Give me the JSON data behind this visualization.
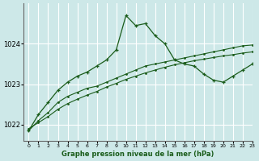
{
  "title": "Graphe pression niveau de la mer (hPa)",
  "bg_color": "#cde8e8",
  "grid_color": "#b0d0d0",
  "line_color": "#1a5c1a",
  "xlim": [
    -0.5,
    23
  ],
  "ylim": [
    1021.6,
    1025.0
  ],
  "yticks": [
    1022,
    1023,
    1024
  ],
  "xticks": [
    0,
    1,
    2,
    3,
    4,
    5,
    6,
    7,
    8,
    9,
    10,
    11,
    12,
    13,
    14,
    15,
    16,
    17,
    18,
    19,
    20,
    21,
    22,
    23
  ],
  "jagged_x": [
    0,
    1,
    2,
    3,
    4,
    5,
    6,
    7,
    8,
    9,
    10,
    11,
    12,
    13,
    14,
    15,
    16,
    17,
    18,
    19,
    20,
    21,
    22,
    23
  ],
  "jagged_y": [
    1021.85,
    1022.25,
    1022.55,
    1022.85,
    1023.05,
    1023.2,
    1023.3,
    1023.45,
    1023.6,
    1023.85,
    1024.7,
    1024.45,
    1024.5,
    1024.2,
    1024.0,
    1023.6,
    1023.5,
    1023.45,
    1023.25,
    1023.1,
    1023.05,
    1023.2,
    1023.35,
    1023.5
  ],
  "line2_x": [
    0,
    1,
    2,
    3,
    4,
    5,
    6,
    7,
    8,
    9,
    10,
    11,
    12,
    13,
    14,
    15,
    16,
    17,
    18,
    19,
    20,
    21,
    22,
    23
  ],
  "line2_y": [
    1021.85,
    1022.1,
    1022.3,
    1022.55,
    1022.7,
    1022.8,
    1022.9,
    1022.95,
    1023.05,
    1023.15,
    1023.25,
    1023.35,
    1023.45,
    1023.5,
    1023.55,
    1023.6,
    1023.65,
    1023.7,
    1023.75,
    1023.8,
    1023.85,
    1023.9,
    1023.95,
    1023.97
  ],
  "line3_x": [
    0,
    1,
    2,
    3,
    4,
    5,
    6,
    7,
    8,
    9,
    10,
    11,
    12,
    13,
    14,
    15,
    16,
    17,
    18,
    19,
    20,
    21,
    22,
    23
  ],
  "line3_y": [
    1021.9,
    1022.05,
    1022.2,
    1022.38,
    1022.52,
    1022.63,
    1022.73,
    1022.82,
    1022.93,
    1023.02,
    1023.12,
    1023.2,
    1023.28,
    1023.35,
    1023.42,
    1023.48,
    1023.53,
    1023.58,
    1023.62,
    1023.66,
    1023.7,
    1023.73,
    1023.77,
    1023.8
  ]
}
